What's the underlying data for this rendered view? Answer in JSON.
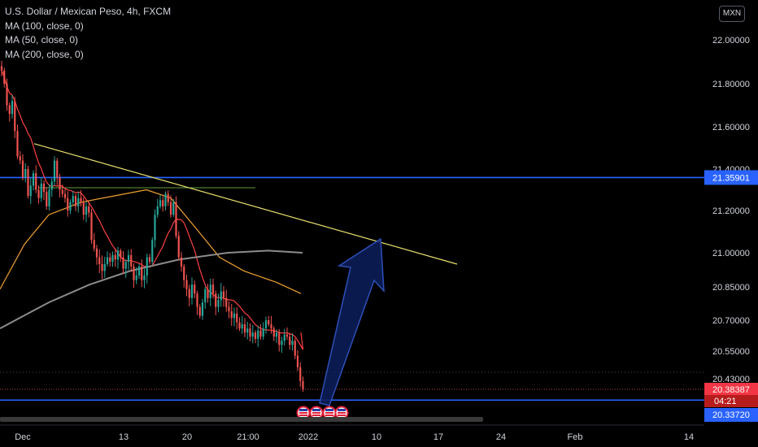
{
  "legend": {
    "title": "U.S. Dollar / Mexican Peso, 4h, FXCM",
    "indicators": [
      "MA (100, close, 0)",
      "MA (50, close, 0)",
      "MA (200, close, 0)"
    ]
  },
  "currency_button": "MXN",
  "colors": {
    "background": "#000000",
    "up": "#26a69a",
    "down": "#ef5350",
    "ma50": "#f0a030",
    "ma100": "#ff4040",
    "ma200": "#8c8c8c",
    "trendline": "#e8e06a",
    "hline": "#2962ff",
    "resistance": "#5f9b3f",
    "arrow_fill": "#0d1f5c",
    "arrow_stroke": "#2d4fb8",
    "current_label": "#f23645",
    "countdown_label": "#b71c1c",
    "hline_label": "#2962ff"
  },
  "chart_data": {
    "type": "candlestick",
    "y_ticks": [
      "22.00000",
      "21.80000",
      "21.60000",
      "21.40000",
      "21.20000",
      "21.00000",
      "20.85000",
      "20.70000",
      "20.55000",
      "20.43000"
    ],
    "x_ticks": [
      "Dec",
      "13",
      "20",
      "21:00",
      "2022",
      "10",
      "17",
      "24",
      "Feb",
      "14"
    ],
    "price_labels": {
      "current": "20.38387",
      "countdown": "04:21",
      "upper_line": "21.35901",
      "lower_line": "20.33720"
    },
    "drawn_levels": {
      "upper_horizontal": 21.35901,
      "lower_horizontal": 20.3372,
      "green_resistance": 21.31
    },
    "trendline": {
      "from": [
        "Dec 2",
        21.52
      ],
      "to": [
        "Jan 19",
        20.95
      ]
    },
    "close_series": [
      21.86,
      21.8,
      21.7,
      21.66,
      21.72,
      21.58,
      21.46,
      21.44,
      21.36,
      21.4,
      21.27,
      21.32,
      21.38,
      21.3,
      21.26,
      21.33,
      21.29,
      21.22,
      21.3,
      21.34,
      21.44,
      21.36,
      21.3,
      21.28,
      21.26,
      21.2,
      21.24,
      21.27,
      21.22,
      21.26,
      21.24,
      21.18,
      21.22,
      21.19,
      21.06,
      21.02,
      20.98,
      20.95,
      20.92,
      20.95,
      20.98,
      20.96,
      20.99,
      20.97,
      21.01,
      20.98,
      20.93,
      20.96,
      20.99,
      20.94,
      20.88,
      20.9,
      20.94,
      20.88,
      20.9,
      20.98,
      20.96,
      21.06,
      21.18,
      21.22,
      21.25,
      21.22,
      21.28,
      21.24,
      21.18,
      21.24,
      21.08,
      20.98,
      20.94,
      20.88,
      20.84,
      20.8,
      20.86,
      20.82,
      20.76,
      20.72,
      20.78,
      20.84,
      20.8,
      20.86,
      20.82,
      20.76,
      20.79,
      20.83,
      20.8,
      20.76,
      20.74,
      20.71,
      20.73,
      20.69,
      20.66,
      20.68,
      20.64,
      20.66,
      20.62,
      20.64,
      20.61,
      20.65,
      20.62,
      20.66,
      20.7,
      20.68,
      20.66,
      20.62,
      20.64,
      20.58,
      20.6,
      20.63,
      20.62,
      20.58,
      20.6,
      20.53,
      20.48,
      20.42,
      20.384
    ]
  }
}
